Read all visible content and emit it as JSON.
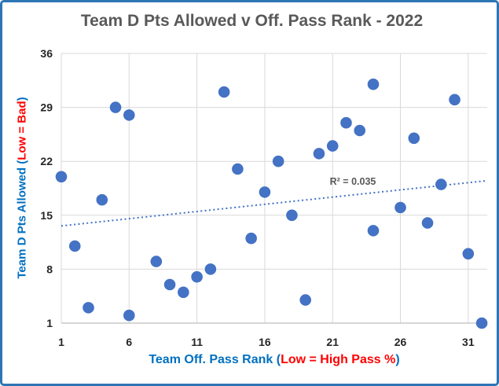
{
  "chart_data": {
    "type": "scatter",
    "title": "Team D Pts Allowed v Off. Pass Rank - 2022",
    "xlabel": "Team Off. Pass Rank (Low = High Pass %)",
    "ylabel": "Team D Pts Allowed (Low = Bad)",
    "xlabel_parts": {
      "pre": "Team Off. Pass Rank (",
      "red": "Low = High Pass %",
      "post": ")"
    },
    "ylabel_parts": {
      "pre": "Team D Pts Allowed (",
      "red": "Low = Bad",
      "post": ")"
    },
    "x_ticks": [
      1,
      6,
      11,
      16,
      21,
      26,
      31
    ],
    "y_ticks": [
      1,
      8,
      15,
      22,
      29,
      36
    ],
    "xlim": [
      1,
      32.4
    ],
    "ylim": [
      1,
      36
    ],
    "grid": true,
    "legend": false,
    "points": [
      [
        1,
        20
      ],
      [
        2,
        11
      ],
      [
        3,
        3
      ],
      [
        4,
        17
      ],
      [
        5,
        29
      ],
      [
        6,
        28
      ],
      [
        6,
        2
      ],
      [
        8,
        9
      ],
      [
        9,
        6
      ],
      [
        10,
        5
      ],
      [
        11,
        7
      ],
      [
        12,
        8
      ],
      [
        13,
        31
      ],
      [
        14,
        21
      ],
      [
        15,
        12
      ],
      [
        16,
        18
      ],
      [
        17,
        22
      ],
      [
        18,
        15
      ],
      [
        19,
        4
      ],
      [
        20,
        23
      ],
      [
        21,
        24
      ],
      [
        22,
        27
      ],
      [
        23,
        26
      ],
      [
        24,
        32
      ],
      [
        24,
        13
      ],
      [
        26,
        16
      ],
      [
        27,
        25
      ],
      [
        28,
        14
      ],
      [
        29,
        19
      ],
      [
        30,
        30
      ],
      [
        31,
        10
      ],
      [
        32,
        1
      ]
    ],
    "trendline": {
      "slope": 0.187,
      "intercept": 13.43,
      "style": "dotted",
      "label": "R² = 0.035"
    },
    "r2_label": "R² = 0.035",
    "colors": {
      "marker": "#4472C4",
      "trendline": "#4472C4",
      "grid": "#D9D9D9",
      "axis": "#BFBFBF",
      "tick": "#262626",
      "title": "#595959",
      "axis_label_blue": "#0070C0",
      "axis_label_red": "#FF0000",
      "frame_border": "#2E75B6"
    }
  }
}
